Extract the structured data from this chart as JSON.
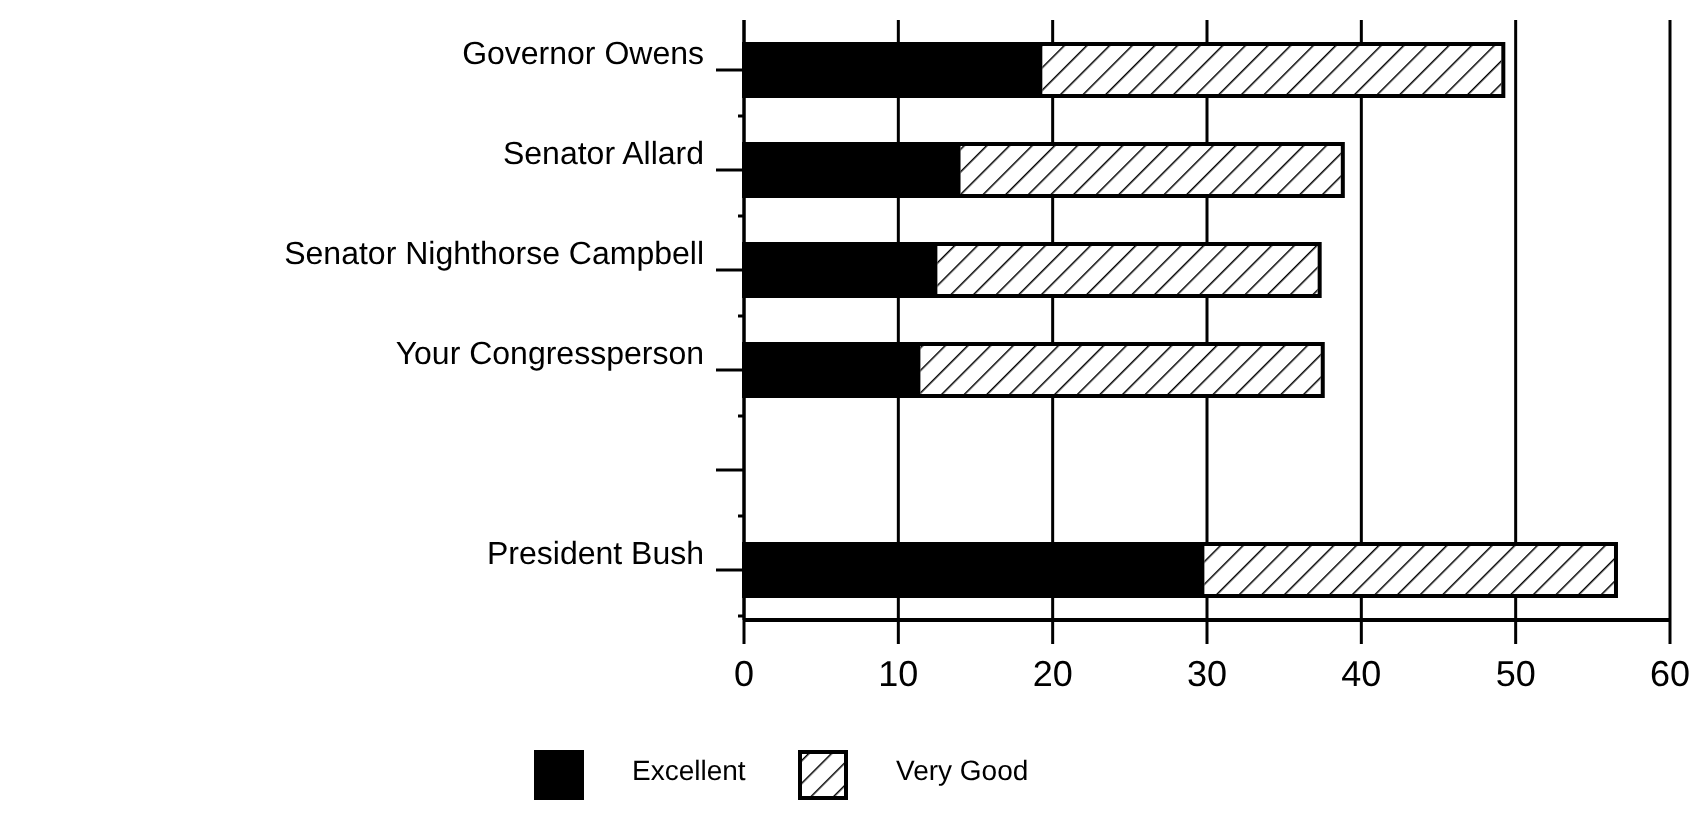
{
  "chart_data": {
    "type": "bar",
    "orientation": "horizontal",
    "stacked": true,
    "categories": [
      "Governor Owens",
      "Senator Allard",
      "Senator Nighthorse Campbell",
      "Your Congressperson",
      null,
      "President Bush"
    ],
    "series": [
      {
        "name": "Excellent",
        "color": "#000000",
        "values": [
          19.2,
          13.9,
          12.4,
          11.3,
          null,
          29.7
        ]
      },
      {
        "name": "Very Good",
        "color": "#ffffff",
        "values": [
          30.0,
          24.9,
          24.9,
          26.2,
          null,
          26.8
        ]
      }
    ],
    "xlim": [
      0,
      60
    ],
    "xticks": [
      0,
      10,
      20,
      30,
      40,
      50,
      60
    ],
    "grid": "x",
    "legend": "bottom"
  }
}
